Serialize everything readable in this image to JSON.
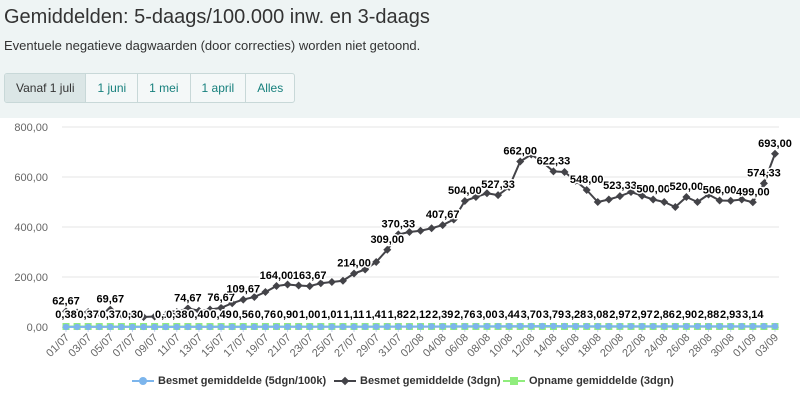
{
  "header": {
    "title": "Gemiddelden: 5-daags/100.000 inw. en 3-daags",
    "subtitle": "Eventuele negatieve dagwaarden (door correcties) worden niet getoond."
  },
  "range_buttons": [
    {
      "label": "Vanaf 1 juli",
      "active": true
    },
    {
      "label": "1 juni",
      "active": false
    },
    {
      "label": "1 mei",
      "active": false
    },
    {
      "label": "1 april",
      "active": false
    },
    {
      "label": "Alles",
      "active": false
    }
  ],
  "chart_data": {
    "type": "line",
    "x": [
      "01/07",
      "02/07",
      "03/07",
      "04/07",
      "05/07",
      "06/07",
      "07/07",
      "08/07",
      "09/07",
      "10/07",
      "11/07",
      "12/07",
      "13/07",
      "14/07",
      "15/07",
      "16/07",
      "17/07",
      "18/07",
      "19/07",
      "20/07",
      "21/07",
      "22/07",
      "23/07",
      "24/07",
      "25/07",
      "26/07",
      "27/07",
      "28/07",
      "29/07",
      "30/07",
      "31/07",
      "01/08",
      "02/08",
      "03/08",
      "04/08",
      "05/08",
      "06/08",
      "07/08",
      "08/08",
      "09/08",
      "10/08",
      "11/08",
      "12/08",
      "13/08",
      "14/08",
      "15/08",
      "16/08",
      "17/08",
      "18/08",
      "19/08",
      "20/08",
      "21/08",
      "22/08",
      "23/08",
      "24/08",
      "25/08",
      "26/08",
      "27/08",
      "28/08",
      "29/08",
      "30/08",
      "31/08",
      "01/09",
      "02/09",
      "03/09"
    ],
    "x_tick_labels": [
      "01/07",
      "03/07",
      "05/07",
      "07/07",
      "09/07",
      "11/07",
      "13/07",
      "15/07",
      "17/07",
      "19/07",
      "21/07",
      "23/07",
      "25/07",
      "27/07",
      "29/07",
      "31/07",
      "02/08",
      "04/08",
      "06/08",
      "08/08",
      "10/08",
      "12/08",
      "14/08",
      "16/08",
      "18/08",
      "20/08",
      "22/08",
      "24/08",
      "26/08",
      "28/08",
      "30/08",
      "01/09",
      "03/09"
    ],
    "y_tick_labels": [
      "0,00",
      "200,00",
      "400,00",
      "600,00",
      "800,00"
    ],
    "ylim": [
      0,
      800
    ],
    "y_ticks": [
      0,
      200,
      400,
      600,
      800
    ],
    "grid": true,
    "legend_position": "bottom",
    "series": [
      {
        "name": "Besmet gemiddelde (5dgn/100k)",
        "color": "#7cb5ec",
        "marker": "circle",
        "values": [
          0.38,
          0.4,
          0.37,
          0.38,
          0.37,
          0.35,
          0.3,
          0.28,
          0.27,
          0.25,
          0.38,
          0.38,
          0.4,
          0.45,
          0.49,
          0.55,
          0.56,
          0.62,
          0.76,
          0.83,
          0.9,
          0.95,
          1.0,
          1.01,
          1.01,
          1.06,
          1.11,
          1.25,
          1.41,
          1.6,
          1.82,
          1.95,
          2.12,
          2.25,
          2.39,
          2.55,
          2.76,
          2.9,
          3.0,
          3.2,
          3.44,
          3.58,
          3.7,
          3.75,
          3.79,
          3.55,
          3.28,
          3.15,
          3.08,
          3.0,
          2.97,
          2.95,
          2.97,
          2.9,
          2.86,
          2.88,
          2.9,
          2.88,
          2.88,
          2.9,
          2.93,
          3.0,
          3.14,
          3.2,
          3.25
        ]
      },
      {
        "name": "Besmet gemiddelde (3dgn)",
        "color": "#434348",
        "marker": "diamond",
        "values": [
          62.67,
          58,
          60,
          55,
          69.67,
          50,
          52,
          40,
          42,
          45,
          60,
          74.67,
          65,
          70,
          76.67,
          95,
          109.67,
          120,
          140,
          164,
          170,
          166,
          163.67,
          175,
          180,
          185,
          214,
          230,
          260,
          309,
          370.33,
          380,
          385,
          395,
          407.67,
          430,
          504,
          520,
          535,
          527.33,
          560,
          662,
          690,
          660,
          622.33,
          620,
          585,
          548,
          500,
          510,
          523.33,
          540,
          525,
          510,
          500,
          480,
          520,
          500,
          530,
          506,
          505,
          510,
          499,
          574.33,
          693
        ]
      },
      {
        "name": "Opname gemiddelde (3dgn)",
        "color": "#90ed7d",
        "marker": "square",
        "values": [
          2,
          2,
          2,
          2,
          2,
          2,
          2,
          2,
          2,
          2,
          2,
          2,
          2,
          2,
          2,
          2,
          2,
          2,
          2,
          2,
          2,
          2,
          2,
          2,
          2,
          2,
          2,
          2,
          2,
          2,
          2,
          2,
          2,
          2,
          2,
          2,
          2,
          2,
          2,
          2,
          2,
          2,
          2,
          2,
          2,
          2,
          2,
          2,
          2,
          2,
          2,
          2,
          2,
          2,
          2,
          2,
          2,
          2,
          2,
          2,
          2,
          2,
          2,
          2,
          2
        ]
      }
    ],
    "data_labels_upper": [
      {
        "i": 0,
        "text": "62,67"
      },
      {
        "i": 4,
        "text": "69,67"
      },
      {
        "i": 11,
        "text": "74,67"
      },
      {
        "i": 14,
        "text": "76,67"
      },
      {
        "i": 16,
        "text": "109,67"
      },
      {
        "i": 19,
        "text": "164,00"
      },
      {
        "i": 22,
        "text": "163,67"
      },
      {
        "i": 26,
        "text": "214,00"
      },
      {
        "i": 29,
        "text": "309,00"
      },
      {
        "i": 30,
        "text": "370,33"
      },
      {
        "i": 34,
        "text": "407,67"
      },
      {
        "i": 36,
        "text": "504,00"
      },
      {
        "i": 39,
        "text": "527,33"
      },
      {
        "i": 41,
        "text": "662,00"
      },
      {
        "i": 44,
        "text": "622,33"
      },
      {
        "i": 47,
        "text": "548,00"
      },
      {
        "i": 50,
        "text": "523,33"
      },
      {
        "i": 53,
        "text": "500,00"
      },
      {
        "i": 56,
        "text": "520,00"
      },
      {
        "i": 59,
        "text": "506,00"
      },
      {
        "i": 62,
        "text": "499,00"
      },
      {
        "i": 63,
        "text": "574,33"
      },
      {
        "i": 64,
        "text": "693,00"
      }
    ],
    "data_labels_lower": [
      {
        "i": 0,
        "text": "0,38"
      },
      {
        "i": 2,
        "text": "0,37"
      },
      {
        "i": 4,
        "text": "0,37"
      },
      {
        "i": 6,
        "text": "0,30"
      },
      {
        "i": 9,
        "text": "0,25"
      },
      {
        "i": 10,
        "text": "0,38"
      },
      {
        "i": 12,
        "text": "0,40"
      },
      {
        "i": 14,
        "text": "0,49"
      },
      {
        "i": 16,
        "text": "0,56"
      },
      {
        "i": 18,
        "text": "0,76"
      },
      {
        "i": 20,
        "text": "0,90"
      },
      {
        "i": 22,
        "text": "1,00"
      },
      {
        "i": 24,
        "text": "1,01"
      },
      {
        "i": 26,
        "text": "1,11"
      },
      {
        "i": 28,
        "text": "1,41"
      },
      {
        "i": 30,
        "text": "1,82"
      },
      {
        "i": 32,
        "text": "2,12"
      },
      {
        "i": 34,
        "text": "2,39"
      },
      {
        "i": 36,
        "text": "2,76"
      },
      {
        "i": 38,
        "text": "3,00"
      },
      {
        "i": 40,
        "text": "3,44"
      },
      {
        "i": 42,
        "text": "3,70"
      },
      {
        "i": 44,
        "text": "3,79"
      },
      {
        "i": 46,
        "text": "3,28"
      },
      {
        "i": 48,
        "text": "3,08"
      },
      {
        "i": 50,
        "text": "2,97"
      },
      {
        "i": 52,
        "text": "2,97"
      },
      {
        "i": 54,
        "text": "2,86"
      },
      {
        "i": 56,
        "text": "2,90"
      },
      {
        "i": 58,
        "text": "2,88"
      },
      {
        "i": 60,
        "text": "2,93"
      },
      {
        "i": 62,
        "text": "3,14"
      }
    ]
  }
}
